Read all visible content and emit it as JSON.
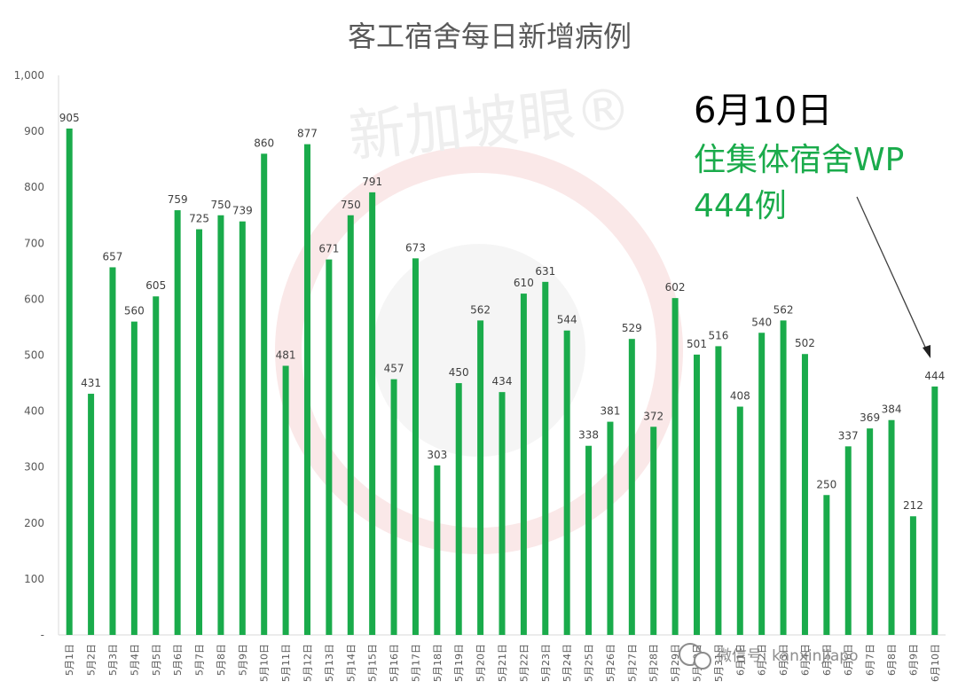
{
  "chart_data": {
    "type": "bar",
    "title": "客工宿舍每日新增病例",
    "bar_color": "#1aab4b",
    "categories": [
      "5月1日",
      "5月2日",
      "5月3日",
      "5月4日",
      "5月5日",
      "5月6日",
      "5月7日",
      "5月8日",
      "5月9日",
      "5月10日",
      "5月11日",
      "5月12日",
      "5月13日",
      "5月14日",
      "5月15日",
      "5月16日",
      "5月17日",
      "5月18日",
      "5月19日",
      "5月20日",
      "5月21日",
      "5月22日",
      "5月23日",
      "5月24日",
      "5月25日",
      "5月26日",
      "5月27日",
      "5月28日",
      "5月29日",
      "5月30日",
      "5月31日",
      "6月1日",
      "6月2日",
      "6月3日",
      "6月4日",
      "6月5日",
      "6月6日",
      "6月7日",
      "6月8日",
      "6月9日",
      "6月10日"
    ],
    "values": [
      905,
      431,
      657,
      560,
      605,
      759,
      725,
      750,
      739,
      860,
      481,
      877,
      671,
      750,
      791,
      457,
      673,
      303,
      450,
      562,
      434,
      610,
      631,
      544,
      338,
      381,
      529,
      372,
      602,
      501,
      516,
      408,
      540,
      562,
      502,
      250,
      337,
      369,
      384,
      212,
      444
    ],
    "yticks": [
      "-",
      "100",
      "200",
      "300",
      "400",
      "500",
      "600",
      "700",
      "800",
      "900",
      "1,000"
    ],
    "ylim": [
      0,
      1000
    ],
    "grid": false,
    "annotation": {
      "line1": "6月10日",
      "line2": "住集体宿舍WP",
      "line3": "444例",
      "line2_color": "#1aab4b"
    }
  },
  "watermarks": {
    "center_text": "新加坡眼®",
    "wechat_text": "微信号: kanxinjiapo"
  }
}
